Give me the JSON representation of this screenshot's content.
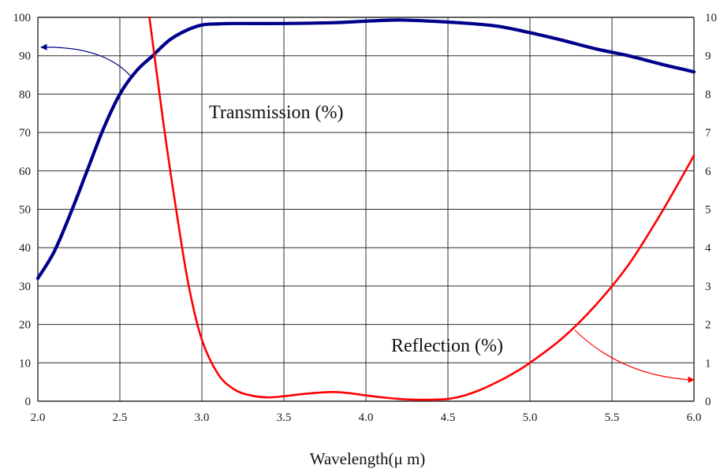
{
  "chart_data": {
    "type": "line",
    "title": "",
    "xlabel": "Wavelength(μ m)",
    "ylabel_left": "",
    "ylabel_right": "",
    "xlim": [
      2.0,
      6.0
    ],
    "ylim_left": [
      0,
      100
    ],
    "ylim_right": [
      0,
      10
    ],
    "grid": true,
    "x_ticks": [
      "2.0",
      "2.5",
      "3.0",
      "3.5",
      "4.0",
      "4.5",
      "5.0",
      "5.5",
      "6.0"
    ],
    "y_ticks_left": [
      "0",
      "10",
      "20",
      "30",
      "40",
      "50",
      "60",
      "70",
      "80",
      "90",
      "100"
    ],
    "y_ticks_right": [
      "0",
      "1",
      "2",
      "3",
      "4",
      "5",
      "6",
      "7",
      "8",
      "9",
      "10"
    ],
    "annotations": [
      {
        "name": "transmission",
        "text": "Transmission (%)"
      },
      {
        "name": "reflection",
        "text": "Reflection (%)"
      }
    ],
    "series": [
      {
        "name": "Transmission (%)",
        "axis": "left",
        "color": "#00008b",
        "x": [
          2.0,
          2.1,
          2.2,
          2.3,
          2.4,
          2.5,
          2.6,
          2.7,
          2.8,
          2.9,
          3.0,
          3.1,
          3.2,
          3.5,
          3.8,
          4.0,
          4.2,
          4.4,
          4.6,
          4.8,
          5.0,
          5.2,
          5.4,
          5.6,
          5.8,
          5.9,
          6.0
        ],
        "y": [
          32,
          39,
          49,
          60,
          71,
          80,
          86,
          90,
          94,
          96.5,
          98,
          98.3,
          98.4,
          98.4,
          98.6,
          99,
          99.3,
          99,
          98.5,
          97.7,
          96,
          94,
          91.8,
          90,
          87.8,
          86.8,
          85.8
        ]
      },
      {
        "name": "Reflection (%)",
        "axis": "left",
        "color": "#ff0000",
        "x": [
          2.68,
          2.72,
          2.78,
          2.85,
          2.92,
          3.0,
          3.1,
          3.2,
          3.3,
          3.4,
          3.5,
          3.6,
          3.7,
          3.8,
          3.9,
          4.0,
          4.1,
          4.2,
          4.3,
          4.4,
          4.5,
          4.6,
          4.7,
          4.8,
          4.9,
          5.0,
          5.2,
          5.4,
          5.6,
          5.8,
          6.0
        ],
        "y": [
          100,
          87,
          68,
          48,
          30,
          16,
          7,
          3,
          1.5,
          1,
          1.3,
          1.8,
          2.2,
          2.4,
          2.1,
          1.5,
          1,
          0.6,
          0.4,
          0.4,
          0.6,
          1.5,
          3,
          5,
          7.3,
          10,
          16.5,
          25,
          35.5,
          49,
          64
        ]
      }
    ]
  }
}
